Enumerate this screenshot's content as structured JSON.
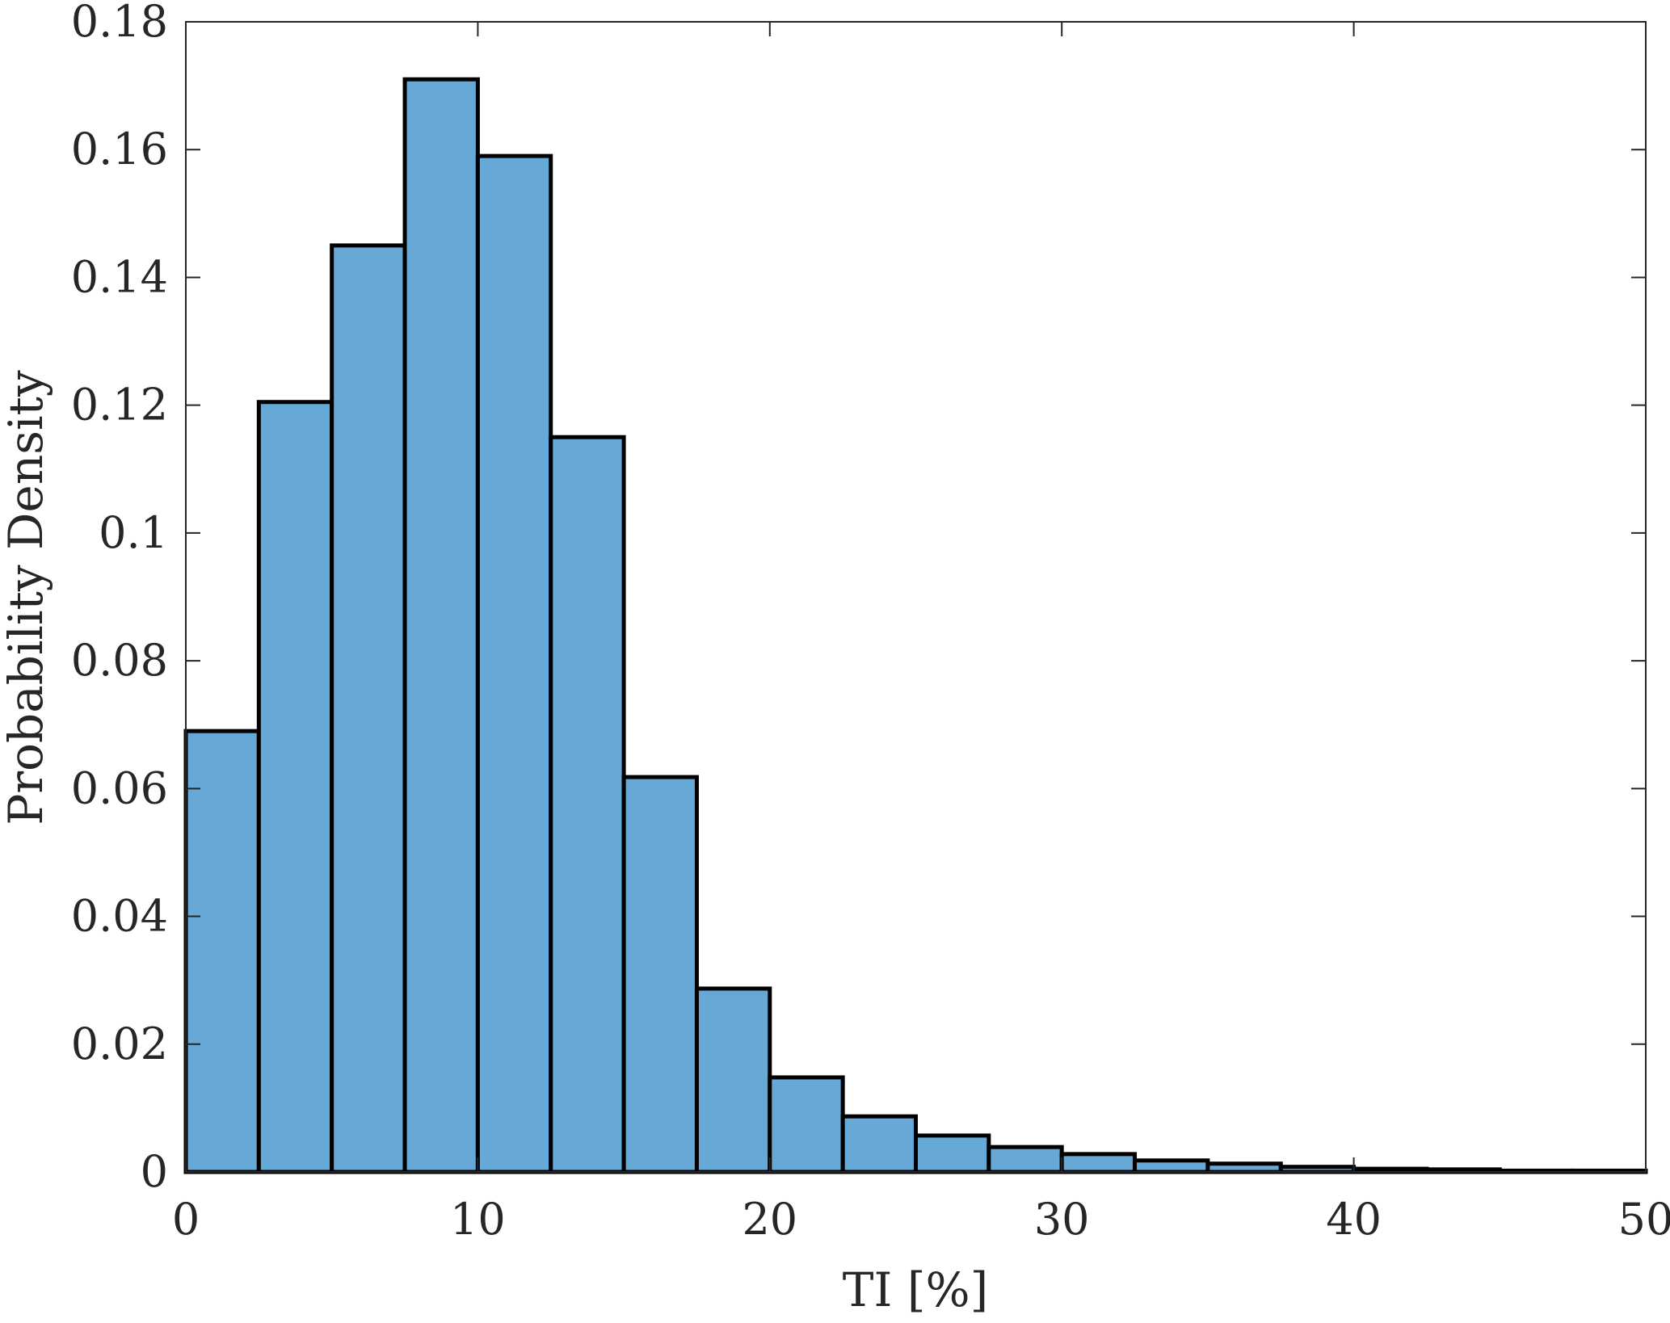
{
  "chart_data": {
    "type": "bar",
    "title": "",
    "xlabel": "TI [%]",
    "ylabel": "Probability Density",
    "xlim": [
      0,
      50
    ],
    "ylim": [
      0,
      0.18
    ],
    "xticks": [
      0,
      10,
      20,
      30,
      40,
      50
    ],
    "xtick_labels": [
      "0",
      "10",
      "20",
      "30",
      "40",
      "50"
    ],
    "yticks": [
      0,
      0.02,
      0.04,
      0.06,
      0.08,
      0.1,
      0.12,
      0.14,
      0.16,
      0.18
    ],
    "ytick_labels": [
      "0",
      "0.02",
      "0.04",
      "0.06",
      "0.08",
      "0.1",
      "0.12",
      "0.14",
      "0.16",
      "0.18"
    ],
    "bin_edges": [
      0,
      2.5,
      5,
      7.5,
      10,
      12.5,
      15,
      17.5,
      20,
      22.5,
      25,
      27.5,
      30,
      32.5,
      35,
      37.5,
      40,
      42.5,
      45,
      47.5,
      50
    ],
    "values": [
      0.069,
      0.1205,
      0.145,
      0.171,
      0.159,
      0.115,
      0.0618,
      0.0287,
      0.0148,
      0.0087,
      0.0057,
      0.0039,
      0.0028,
      0.0018,
      0.0013,
      0.0008,
      0.0005,
      0.0004,
      0.0002,
      0.0002
    ],
    "grid": false,
    "colors": {
      "bar_fill": "#66a9d7",
      "bar_edge": "#000000",
      "axis": "#262626"
    }
  }
}
